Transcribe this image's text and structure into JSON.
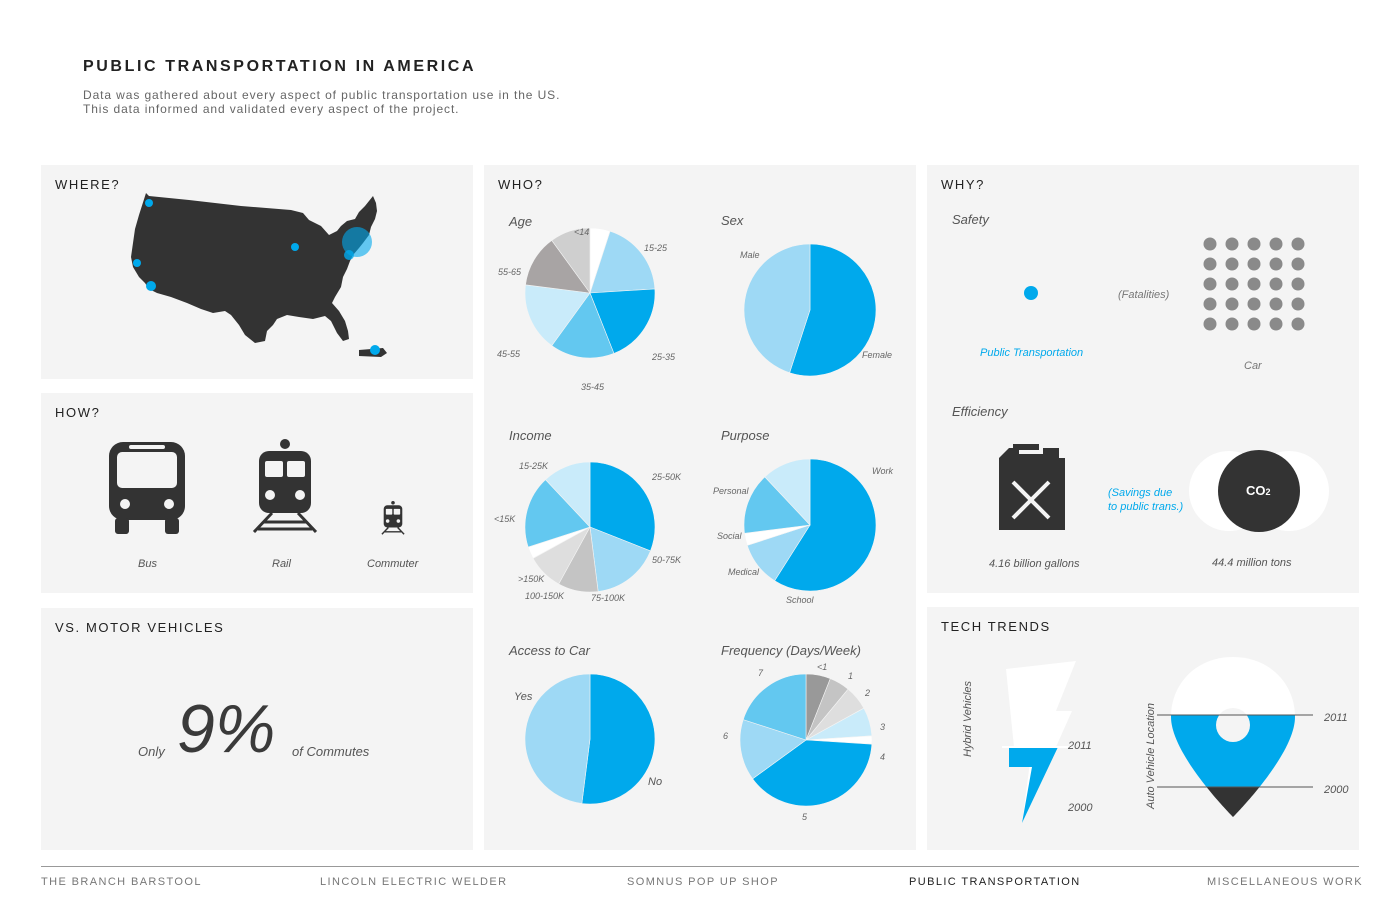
{
  "header": {
    "title": "PUBLIC TRANSPORTATION IN AMERICA",
    "subtitle_line1": "Data was gathered about every aspect of public transportation use in the US.",
    "subtitle_line2": "This data informed and validated every aspect of the project."
  },
  "panels": {
    "where": {
      "title": "WHERE?"
    },
    "how": {
      "title": "HOW?",
      "modes": [
        "Bus",
        "Rail",
        "Commuter"
      ]
    },
    "vs": {
      "title": "VS. MOTOR VEHICLES",
      "prefix": "Only",
      "value": "9%",
      "suffix": "of Commutes"
    },
    "who": {
      "title": "WHO?"
    },
    "why": {
      "title": "WHY?",
      "safety_label": "Safety",
      "fatalities_label": "(Fatalities)",
      "public_label": "Public Transportation",
      "car_label": "Car",
      "efficiency_label": "Efficiency",
      "savings_line1": "(Savings due",
      "savings_line2": "to public trans.)",
      "gallons": "4.16  billion gallons",
      "tons": "44.4  million tons",
      "co2": "CO",
      "co2_sub": "2"
    },
    "tech": {
      "title": "TECH TRENDS",
      "hybrid_label": "Hybrid Vehicles",
      "location_label": "Auto Vehicle Location",
      "year_2011": "2011",
      "year_2000": "2000"
    }
  },
  "colors": {
    "accent": "#00a9ec",
    "light_blue": "#9ed9f5",
    "mid_blue": "#63c8f0",
    "pale_blue": "#c9ebfa",
    "dark": "#333333",
    "gray": "#8a8a8a"
  },
  "chart_data": [
    {
      "type": "pie",
      "title": "Age",
      "categories": [
        "<14",
        "15-25",
        "25-35",
        "35-45",
        "45-55",
        "55-65",
        ">65"
      ],
      "values": [
        5,
        19,
        20,
        16,
        17,
        13,
        10
      ],
      "colors": [
        "#ffffff",
        "#9ed9f5",
        "#00a9ec",
        "#63c8f0",
        "#c9ebfa",
        "#a8a4a4",
        "#cfcfcf"
      ]
    },
    {
      "type": "pie",
      "title": "Sex",
      "categories": [
        "Female",
        "Male"
      ],
      "values": [
        55,
        45
      ],
      "colors": [
        "#00a9ec",
        "#9ed9f5"
      ]
    },
    {
      "type": "pie",
      "title": "Income",
      "categories": [
        "25-50K",
        "50-75K",
        "75-100K",
        "100-150K",
        ">150K",
        "<15K",
        "15-25K"
      ],
      "values": [
        31,
        17,
        10,
        9,
        3,
        18,
        12
      ],
      "colors": [
        "#00a9ec",
        "#9ed9f5",
        "#c4c4c4",
        "#dedede",
        "#ffffff",
        "#63c8f0",
        "#c9ebfa"
      ]
    },
    {
      "type": "pie",
      "title": "Purpose",
      "categories": [
        "Work",
        "School",
        "Medical",
        "Social",
        "Personal"
      ],
      "values": [
        59,
        11,
        3,
        15,
        12
      ],
      "colors": [
        "#00a9ec",
        "#9ed9f5",
        "#ffffff",
        "#63c8f0",
        "#c9ebfa"
      ]
    },
    {
      "type": "pie",
      "title": "Access to Car",
      "categories": [
        "No",
        "Yes"
      ],
      "values": [
        52,
        48
      ],
      "colors": [
        "#00a9ec",
        "#9ed9f5"
      ]
    },
    {
      "type": "pie",
      "title": "Frequency (Days/Week)",
      "categories": [
        "<1",
        "1",
        "2",
        "3",
        "4",
        "5",
        "6",
        "7"
      ],
      "values": [
        6,
        5,
        6,
        7,
        2,
        39,
        15,
        20
      ],
      "colors": [
        "#999999",
        "#c4c4c4",
        "#dedede",
        "#c9ebfa",
        "#ffffff",
        "#00a9ec",
        "#9ed9f5",
        "#63c8f0"
      ]
    }
  ],
  "footer": {
    "nav": [
      "THE BRANCH BARSTOOL",
      "LINCOLN ELECTRIC WELDER",
      "SOMNUS POP UP SHOP",
      "PUBLIC TRANSPORTATION",
      "MISCELLANEOUS WORK"
    ],
    "active": "PUBLIC TRANSPORTATION"
  }
}
